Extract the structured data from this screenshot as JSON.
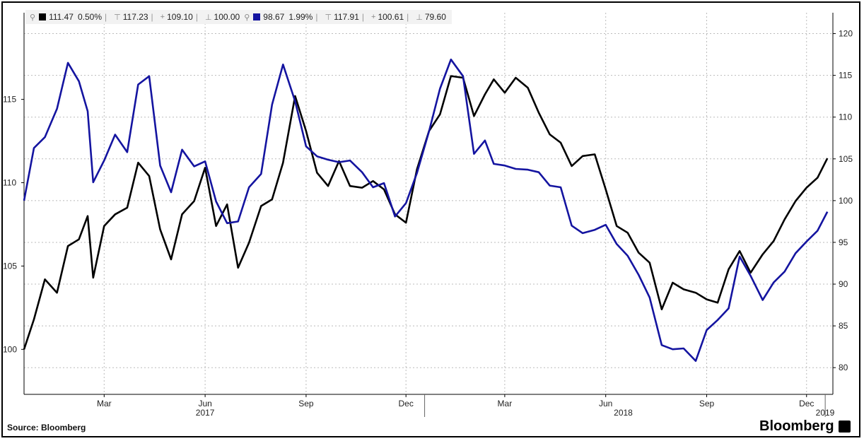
{
  "legend": {
    "s1_color": "#000000",
    "s1_last": "111.47",
    "s1_pct": "0.50%",
    "s1_high": "117.23",
    "s1_avg": "109.10",
    "s1_low": "100.00",
    "s2_color": "#1414a0",
    "s2_last": "98.67",
    "s2_pct": "1.99%",
    "s2_high": "117.91",
    "s2_avg": "100.61",
    "s2_low": "79.60"
  },
  "footer": {
    "source": "Source: Bloomberg",
    "brand": "Bloomberg"
  },
  "chart_data": {
    "type": "line",
    "x_axis": {
      "month_ticks": [
        "Mar",
        "Jun",
        "Sep",
        "Dec",
        "Mar",
        "Jun",
        "Sep",
        "Dec"
      ],
      "year_labels": [
        "2017",
        "2018",
        "2019"
      ],
      "xlim": [
        "2017-01-01",
        "2019-01-08"
      ]
    },
    "y_axis_left": {
      "ticks": [
        "100",
        "105",
        "110",
        "115"
      ],
      "ylim": [
        97.3,
        120.2
      ]
    },
    "y_axis_right": {
      "ticks": [
        "80",
        "85",
        "90",
        "95",
        "100",
        "105",
        "110",
        "115",
        "120"
      ],
      "ylim": [
        76.8,
        122.5
      ]
    },
    "grid": true,
    "series": [
      {
        "axis": "left",
        "color": "#000000",
        "x": [
          "2017-01-01",
          "2017-01-10",
          "2017-01-20",
          "2017-01-31",
          "2017-02-10",
          "2017-02-20",
          "2017-02-28",
          "2017-03-05",
          "2017-03-15",
          "2017-03-25",
          "2017-04-05",
          "2017-04-15",
          "2017-04-25",
          "2017-05-05",
          "2017-05-15",
          "2017-05-25",
          "2017-06-05",
          "2017-06-15",
          "2017-06-25",
          "2017-07-05",
          "2017-07-15",
          "2017-07-25",
          "2017-08-05",
          "2017-08-15",
          "2017-08-25",
          "2017-09-05",
          "2017-09-15",
          "2017-09-25",
          "2017-10-05",
          "2017-10-15",
          "2017-10-25",
          "2017-11-05",
          "2017-11-15",
          "2017-11-25",
          "2017-12-05",
          "2017-12-15",
          "2017-12-25",
          "2018-01-05",
          "2018-01-15",
          "2018-01-25",
          "2018-02-05",
          "2018-02-15",
          "2018-02-25",
          "2018-03-05",
          "2018-03-15",
          "2018-03-25",
          "2018-04-05",
          "2018-04-15",
          "2018-04-25",
          "2018-05-05",
          "2018-05-15",
          "2018-05-25",
          "2018-06-05",
          "2018-06-15",
          "2018-06-25",
          "2018-07-05",
          "2018-07-15",
          "2018-07-25",
          "2018-08-05",
          "2018-08-15",
          "2018-08-25",
          "2018-09-05",
          "2018-09-15",
          "2018-09-25",
          "2018-10-05",
          "2018-10-15",
          "2018-10-25",
          "2018-11-05",
          "2018-11-15",
          "2018-11-25",
          "2018-12-05",
          "2018-12-15",
          "2018-12-25",
          "2019-01-03"
        ],
        "y": [
          100.0,
          101.8,
          104.2,
          103.4,
          106.2,
          106.6,
          108.0,
          104.3,
          107.4,
          108.1,
          108.5,
          111.2,
          110.4,
          107.2,
          105.4,
          108.1,
          108.9,
          110.9,
          107.4,
          108.7,
          104.9,
          106.4,
          108.6,
          109.0,
          111.2,
          115.2,
          113.1,
          110.6,
          109.8,
          111.3,
          109.8,
          109.7,
          110.1,
          109.6,
          108.1,
          107.6,
          110.8,
          113.1,
          114.1,
          116.4,
          116.3,
          114.0,
          115.3,
          116.2,
          115.4,
          116.3,
          115.7,
          114.2,
          112.9,
          112.4,
          111.0,
          111.6,
          111.7,
          109.6,
          107.4,
          107.0,
          105.8,
          105.2,
          102.4,
          104.0,
          103.6,
          103.4,
          103.0,
          102.8,
          104.8,
          105.9,
          104.6,
          105.7,
          106.5,
          107.8,
          108.9,
          109.7,
          110.3,
          111.47
        ]
      },
      {
        "axis": "right",
        "color": "#1414a0",
        "x": [
          "2017-01-01",
          "2017-01-10",
          "2017-01-20",
          "2017-01-31",
          "2017-02-10",
          "2017-02-20",
          "2017-02-28",
          "2017-03-05",
          "2017-03-15",
          "2017-03-25",
          "2017-04-05",
          "2017-04-15",
          "2017-04-25",
          "2017-05-05",
          "2017-05-15",
          "2017-05-25",
          "2017-06-05",
          "2017-06-15",
          "2017-06-25",
          "2017-07-05",
          "2017-07-15",
          "2017-07-25",
          "2017-08-05",
          "2017-08-15",
          "2017-08-25",
          "2017-09-05",
          "2017-09-15",
          "2017-09-25",
          "2017-10-05",
          "2017-10-15",
          "2017-10-25",
          "2017-11-05",
          "2017-11-15",
          "2017-11-25",
          "2017-12-05",
          "2017-12-15",
          "2017-12-25",
          "2018-01-05",
          "2018-01-15",
          "2018-01-25",
          "2018-02-05",
          "2018-02-15",
          "2018-02-25",
          "2018-03-05",
          "2018-03-15",
          "2018-03-25",
          "2018-04-05",
          "2018-04-15",
          "2018-04-25",
          "2018-05-05",
          "2018-05-15",
          "2018-05-25",
          "2018-06-05",
          "2018-06-15",
          "2018-06-25",
          "2018-07-05",
          "2018-07-15",
          "2018-07-25",
          "2018-08-05",
          "2018-08-15",
          "2018-08-25",
          "2018-09-05",
          "2018-09-15",
          "2018-09-25",
          "2018-10-05",
          "2018-10-15",
          "2018-10-25",
          "2018-11-05",
          "2018-11-15",
          "2018-11-25",
          "2018-12-05",
          "2018-12-15",
          "2018-12-25",
          "2019-01-03"
        ],
        "y": [
          100.0,
          106.3,
          107.6,
          111.0,
          116.5,
          114.3,
          110.7,
          102.2,
          104.8,
          107.9,
          105.8,
          113.9,
          114.9,
          104.2,
          101.0,
          106.1,
          104.1,
          104.7,
          99.9,
          97.3,
          97.5,
          101.6,
          103.2,
          111.5,
          116.3,
          111.9,
          106.5,
          105.3,
          104.9,
          104.6,
          104.8,
          103.4,
          101.6,
          102.1,
          98.1,
          99.7,
          103.3,
          108.3,
          113.4,
          116.9,
          114.9,
          105.6,
          107.2,
          104.4,
          104.2,
          103.8,
          103.7,
          103.4,
          101.8,
          101.6,
          97.0,
          96.1,
          96.5,
          97.1,
          94.8,
          93.4,
          91.1,
          88.4,
          82.7,
          82.2,
          82.3,
          80.8,
          84.5,
          85.7,
          87.1,
          93.3,
          91.0,
          88.1,
          90.2,
          91.5,
          93.7,
          95.1,
          96.4,
          98.67
        ]
      }
    ]
  }
}
